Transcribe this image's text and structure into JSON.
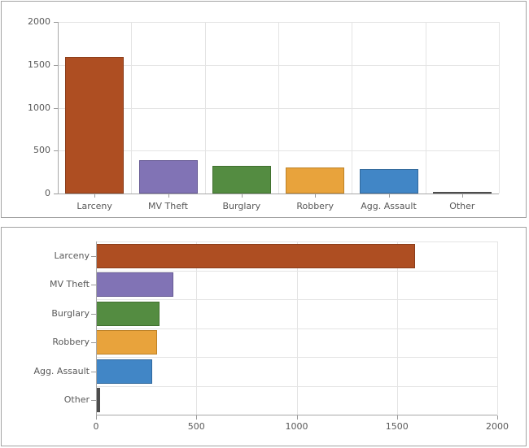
{
  "page": {
    "background": "#ffffff",
    "panel_border_color": "#a3a3a3"
  },
  "palette": {
    "grid_color": "#e4e4e4",
    "axis_color": "#a8a8a8",
    "tick_color": "#9a9a9a",
    "label_color": "#595959",
    "bar_fills": [
      "#ae4e22",
      "#8173b5",
      "#548c41",
      "#e8a33c",
      "#4186c6",
      "#757575"
    ],
    "bar_borders": [
      "#8a3d1a",
      "#665a94",
      "#41702f",
      "#bd8126",
      "#30689c",
      "#4d4d4d"
    ]
  },
  "chart_data": [
    {
      "type": "bar",
      "orientation": "vertical",
      "categories": [
        "Larceny",
        "MV Theft",
        "Burglary",
        "Robbery",
        "Agg. Assault",
        "Other"
      ],
      "values": [
        1590,
        385,
        318,
        305,
        280,
        20
      ],
      "value_axis": {
        "min": 0,
        "max": 2000,
        "ticks": [
          0,
          500,
          1000,
          1500,
          2000
        ]
      },
      "tick_labels": [
        "0",
        "500",
        "1000",
        "1500",
        "2000"
      ],
      "grid": true,
      "legend": "none"
    },
    {
      "type": "bar",
      "orientation": "horizontal",
      "categories": [
        "Larceny",
        "MV Theft",
        "Burglary",
        "Robbery",
        "Agg. Assault",
        "Other"
      ],
      "values": [
        1590,
        385,
        318,
        305,
        280,
        20
      ],
      "value_axis": {
        "min": 0,
        "max": 2000,
        "ticks": [
          0,
          500,
          1000,
          1500,
          2000
        ]
      },
      "tick_labels": [
        "0",
        "500",
        "1000",
        "1500",
        "2000"
      ],
      "grid": true,
      "legend": "none"
    }
  ]
}
